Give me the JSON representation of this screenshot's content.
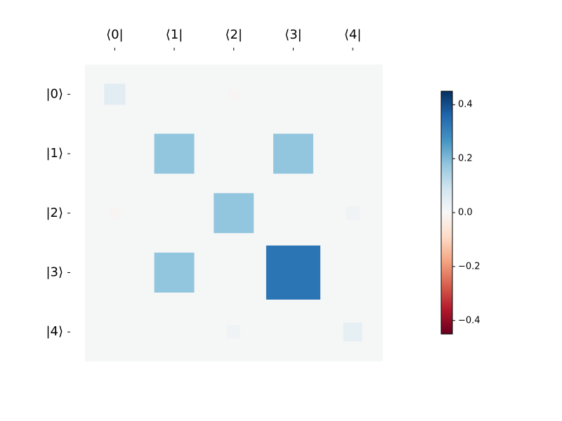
{
  "chart_data": {
    "type": "hinton",
    "x_labels": [
      "⟨0|",
      "⟨1|",
      "⟨2|",
      "⟨3|",
      "⟨4|"
    ],
    "y_labels": [
      "|0⟩",
      "|1⟩",
      "|2⟩",
      "|3⟩",
      "|4⟩"
    ],
    "values": [
      [
        0.05,
        0,
        -0.01,
        0,
        0
      ],
      [
        0,
        0.18,
        0,
        0.18,
        0
      ],
      [
        -0.01,
        0,
        0.18,
        0,
        0.02
      ],
      [
        0,
        0.18,
        0,
        0.33,
        0
      ],
      [
        0,
        0,
        0.02,
        0,
        0.04
      ]
    ],
    "clim": [
      -0.45,
      0.45
    ],
    "cticks": [
      {
        "value": -0.4,
        "label": "−0.4"
      },
      {
        "value": -0.2,
        "label": "−0.2"
      },
      {
        "value": 0,
        "label": "0.0"
      },
      {
        "value": 0.2,
        "label": "0.2"
      },
      {
        "value": 0.4,
        "label": "0.4"
      }
    ]
  }
}
